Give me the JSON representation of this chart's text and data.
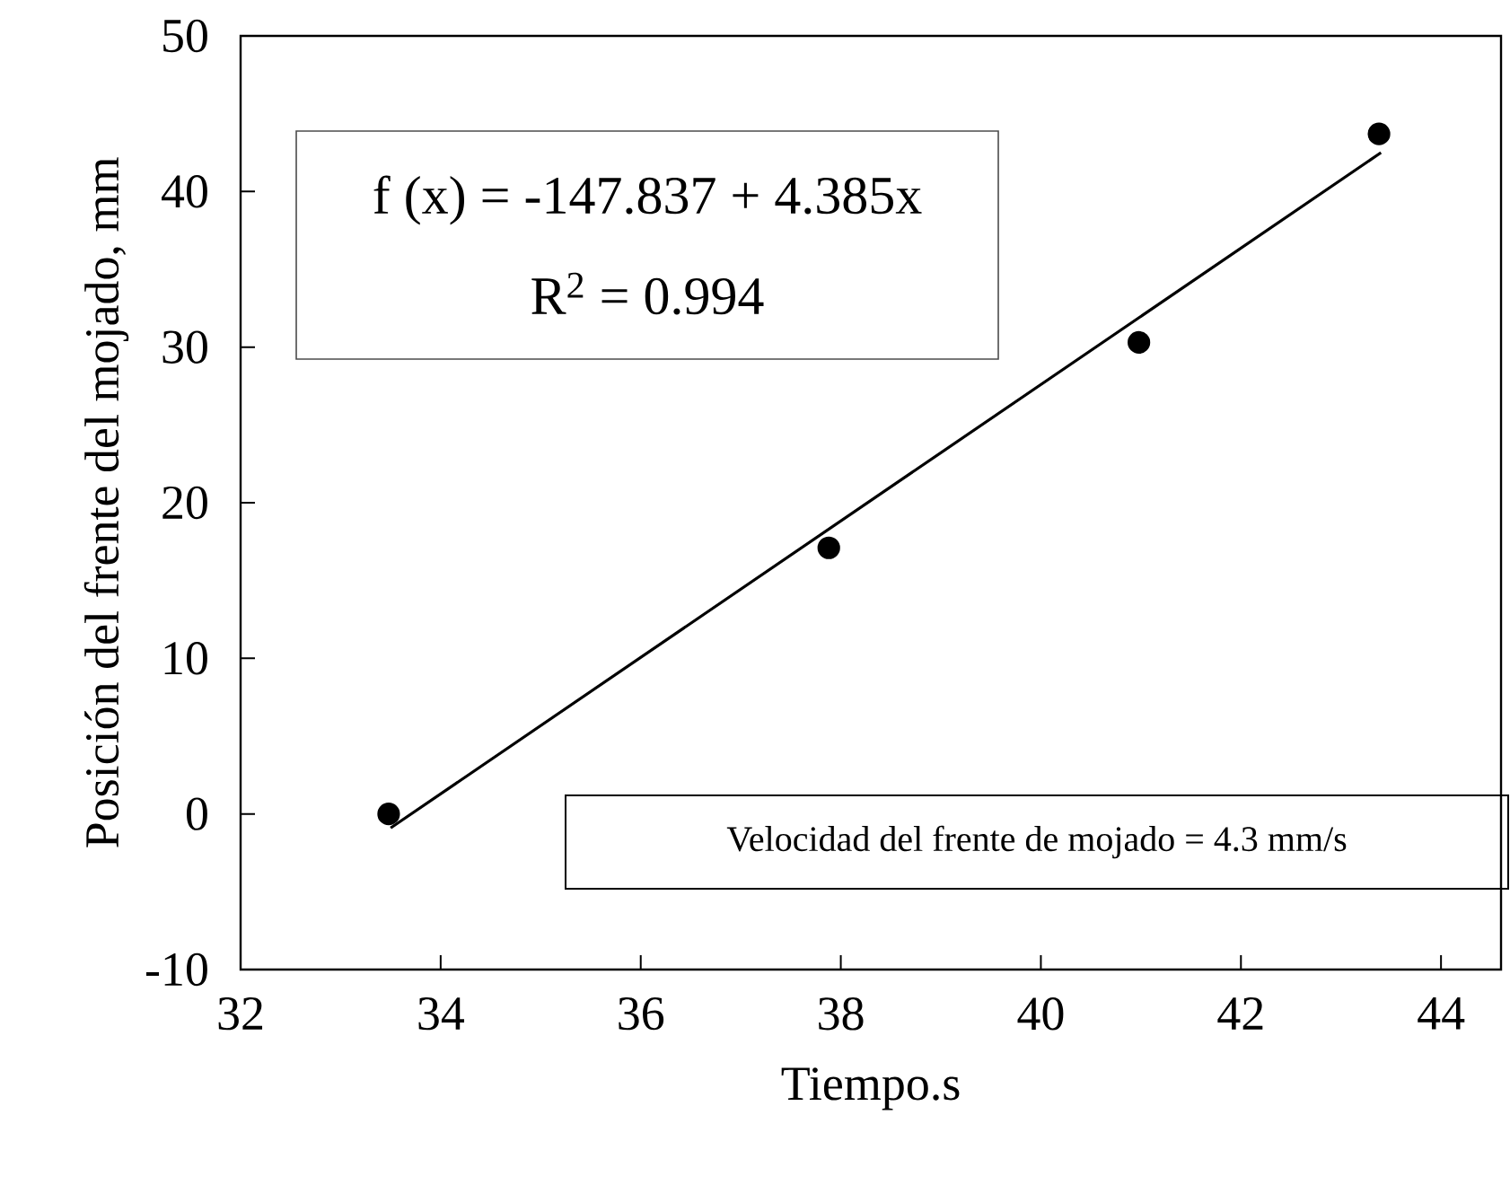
{
  "chart_data": {
    "type": "scatter",
    "xlabel": "Tiempo.s",
    "ylabel": "Posición del frente del mojado, mm",
    "xlim": [
      32,
      44.6
    ],
    "ylim": [
      -10,
      50
    ],
    "xticks": [
      32,
      34,
      36,
      38,
      40,
      42,
      44
    ],
    "yticks": [
      -10,
      0,
      10,
      20,
      30,
      40,
      50
    ],
    "grid": false,
    "marker": "circle",
    "series": [
      {
        "color": "#000000",
        "x": [
          33.48,
          37.88,
          40.98,
          43.38
        ],
        "values": [
          0,
          17.1,
          30.3,
          43.7
        ]
      },
      {
        "type": "line",
        "marker": "none",
        "color": "#000000",
        "x": [
          33.5,
          43.4
        ],
        "values": [
          -0.9,
          42.5
        ]
      }
    ],
    "annotations": [
      "f (x) = -147.837  + 4.385x",
      "R$^{2}$ = 0.994",
      "Velocidad del frente de mojado = 4.3 mm/s"
    ]
  }
}
